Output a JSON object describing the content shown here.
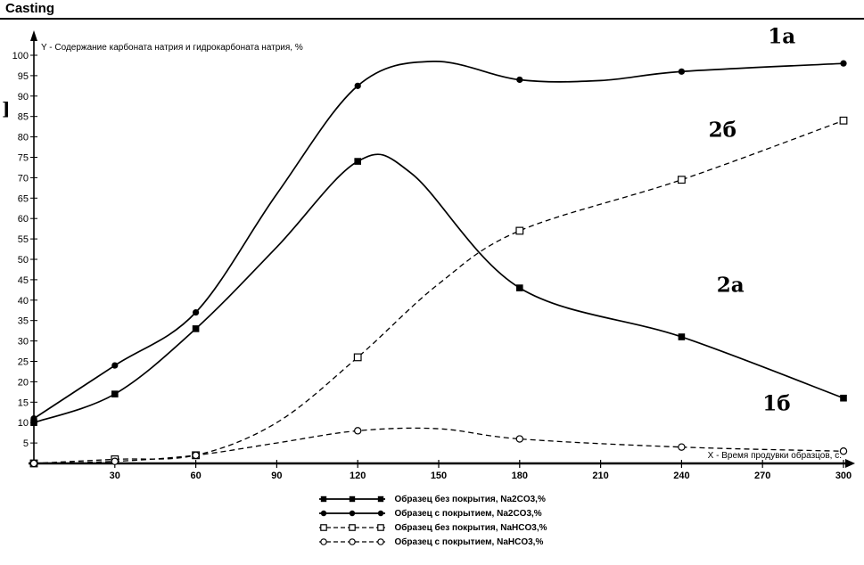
{
  "header": {
    "title": "Casting"
  },
  "margin_note": "]",
  "chart_data": {
    "type": "line",
    "ylabel_note": "Y - Содержание карбоната натрия и гидрокарбоната натрия, %",
    "xlabel_note": "X - Время продувки образцов, с.",
    "x_ticks": [
      30,
      60,
      90,
      120,
      150,
      180,
      210,
      240,
      270,
      300
    ],
    "y_ticks": [
      5,
      10,
      15,
      20,
      25,
      30,
      35,
      40,
      45,
      50,
      55,
      60,
      65,
      70,
      75,
      80,
      85,
      90,
      95,
      100
    ],
    "xlim": [
      0,
      300
    ],
    "ylim": [
      0,
      100
    ],
    "grid": false,
    "legend_position": "bottom-center",
    "series": [
      {
        "name": "Образец без покрытия, Na2CO3,%",
        "curve_label": "2a",
        "marker": "filled-square",
        "dash": "solid",
        "x": [
          0,
          30,
          60,
          120,
          180,
          240,
          300
        ],
        "y": [
          10,
          17,
          33,
          74,
          43,
          31,
          16
        ],
        "shape_x": [
          0,
          30,
          60,
          90,
          120,
          140,
          180,
          240,
          300
        ],
        "shape_y": [
          10,
          17,
          33,
          53,
          74,
          71,
          43,
          31,
          16
        ]
      },
      {
        "name": "Образец с покрытием, Na2CO3,%",
        "curve_label": "1a",
        "marker": "filled-circle",
        "dash": "solid",
        "x": [
          0,
          30,
          60,
          120,
          180,
          240,
          300
        ],
        "y": [
          11,
          24,
          37,
          92.5,
          94,
          96,
          98
        ],
        "shape_x": [
          0,
          30,
          60,
          90,
          120,
          148,
          180,
          210,
          240,
          300
        ],
        "shape_y": [
          11,
          24,
          37,
          66,
          92.5,
          98.5,
          94,
          93.8,
          96,
          98
        ]
      },
      {
        "name": "Образец без покрытия, NaHCO3,%",
        "curve_label": "2б",
        "marker": "open-square",
        "dash": "dashed",
        "x": [
          0,
          30,
          60,
          120,
          180,
          240,
          300
        ],
        "y": [
          0,
          1,
          2,
          26,
          57,
          69.5,
          84
        ],
        "shape_x": [
          0,
          30,
          60,
          90,
          120,
          150,
          180,
          240,
          300
        ],
        "shape_y": [
          0,
          1,
          2,
          10,
          26,
          44,
          57,
          69.5,
          84
        ]
      },
      {
        "name": "Образец с покрытием, NaHCO3,%",
        "curve_label": "1б",
        "marker": "open-circle",
        "dash": "dashed",
        "x": [
          0,
          30,
          60,
          120,
          180,
          240,
          300
        ],
        "y": [
          0,
          0.5,
          2,
          8,
          6,
          4,
          3
        ],
        "shape_x": [
          0,
          30,
          60,
          90,
          120,
          150,
          180,
          240,
          300
        ],
        "shape_y": [
          0,
          0.5,
          2,
          5,
          8,
          8.5,
          6,
          4,
          3
        ]
      }
    ],
    "annotations": [
      {
        "text": "1a",
        "x": 272,
        "y": 103
      },
      {
        "text": "2б",
        "x": 250,
        "y": 80
      },
      {
        "text": "2a",
        "x": 253,
        "y": 42
      },
      {
        "text": "1б",
        "x": 270,
        "y": 13
      }
    ]
  }
}
